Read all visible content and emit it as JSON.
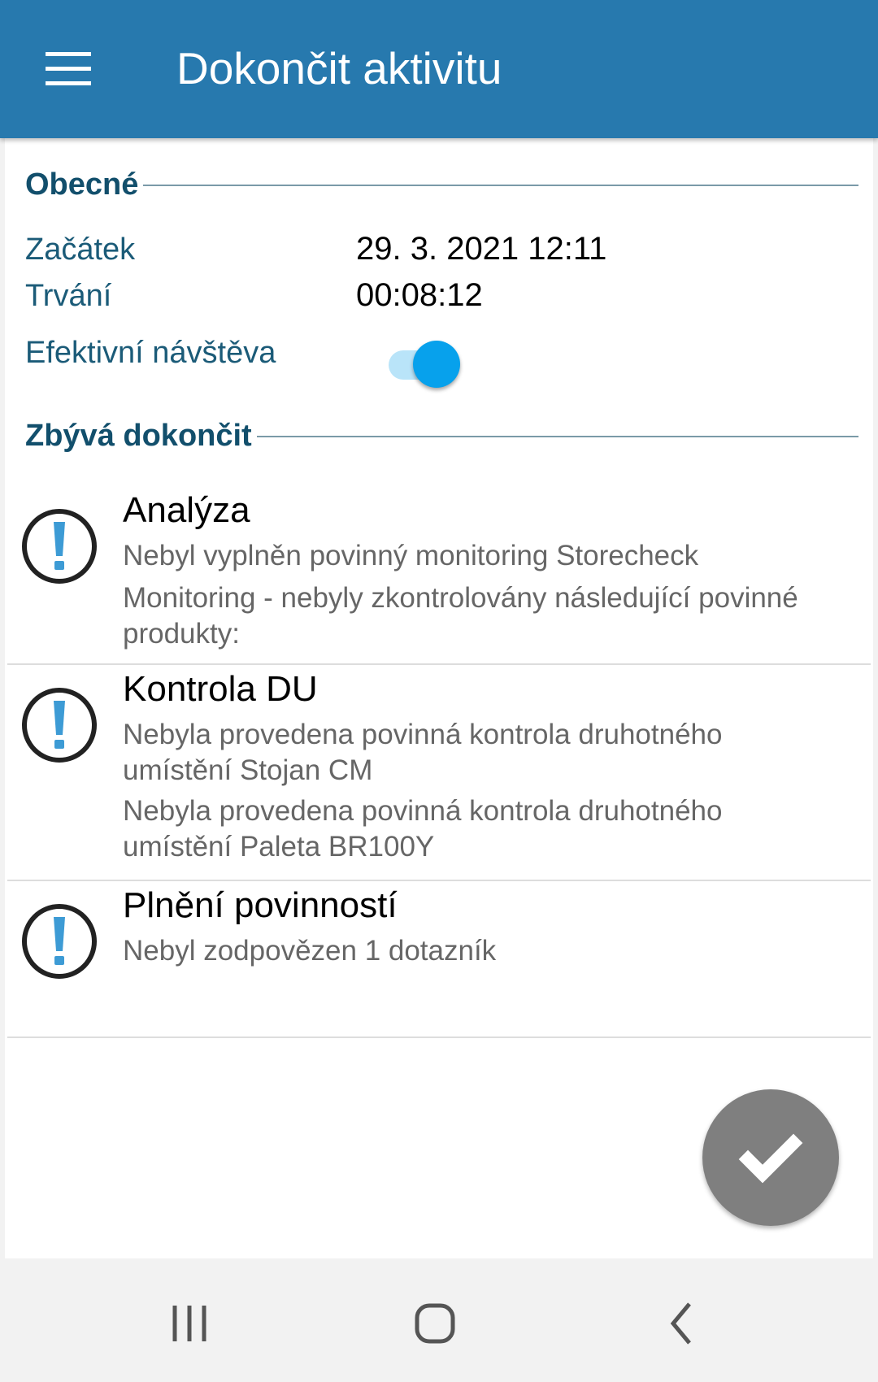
{
  "appbar": {
    "title": "Dokončit aktivitu",
    "menu_icon": "hamburger-menu-icon",
    "color": "#2779ae"
  },
  "general": {
    "heading": "Obecné",
    "start_label": "Začátek",
    "start_value": "29. 3. 2021 12:11",
    "duration_label": "Trvání",
    "duration_value": "00:08:12",
    "effective_label": "Efektivní návštěva",
    "effective_on": true
  },
  "remaining": {
    "heading": "Zbývá dokončit",
    "items": [
      {
        "title": "Analýza",
        "messages": [
          "Nebyl vyplněn povinný monitoring Storecheck",
          "Monitoring - nebyly zkontrolovány následující povinné produkty:"
        ]
      },
      {
        "title": "Kontrola DU",
        "messages": [
          "Nebyla provedena povinná kontrola druhotného umístění Stojan CM",
          "Nebyla provedena povinná kontrola druhotného umístění Paleta BR100Y"
        ]
      },
      {
        "title": "Plnění povinností",
        "messages": [
          "Nebyl zodpovězen 1 dotazník"
        ]
      }
    ]
  },
  "fab": {
    "icon": "checkmark-icon"
  },
  "navbar": {
    "icons": [
      "recent-apps-icon",
      "home-icon",
      "back-icon"
    ]
  }
}
